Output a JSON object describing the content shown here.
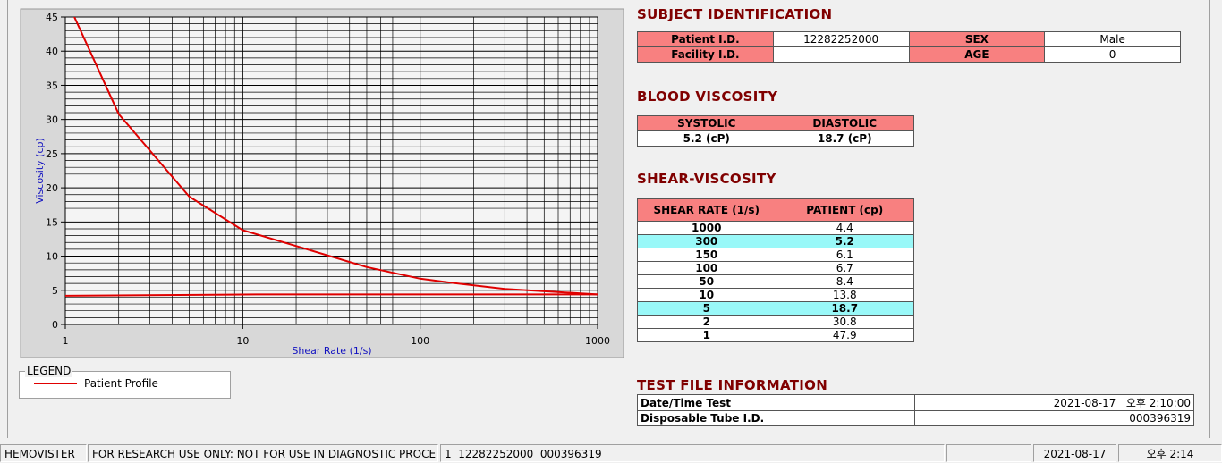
{
  "chart_data": {
    "type": "line",
    "xlabel": "Shear Rate (1/s)",
    "ylabel": "Viscosity (cp)",
    "log_x": true,
    "xlim": [
      1,
      1000
    ],
    "xticks": [
      1,
      10,
      100,
      1000
    ],
    "ylim": [
      0,
      45
    ],
    "yticks": [
      0,
      5,
      10,
      15,
      20,
      25,
      30,
      35,
      40,
      45
    ],
    "grid": true,
    "minor_grid": true,
    "legend_title": "LEGEND",
    "series": [
      {
        "name": "Patient Profile",
        "color": "#e00000",
        "x": [
          1,
          2,
          5,
          10,
          50,
          100,
          150,
          300,
          1000
        ],
        "values": [
          47.9,
          30.8,
          18.7,
          13.8,
          8.4,
          6.7,
          6.1,
          5.2,
          4.4
        ]
      },
      {
        "color": "#e00000",
        "x": [
          1,
          12,
          1000
        ],
        "values": [
          4.2,
          4.4,
          4.4
        ]
      }
    ]
  },
  "subject": {
    "title": "SUBJECT IDENTIFICATION",
    "fields": [
      {
        "label": "Patient I.D.",
        "value": "12282252000"
      },
      {
        "label": "SEX",
        "value": "Male"
      },
      {
        "label": "Facility I.D."
      },
      {
        "label": "AGE",
        "value": "0"
      }
    ]
  },
  "blood": {
    "title": "BLOOD VISCOSITY",
    "headers": [
      "SYSTOLIC",
      "DIASTOLIC"
    ],
    "values": [
      "5.2 (cP)",
      "18.7 (cP)"
    ]
  },
  "shear": {
    "title": "SHEAR-VISCOSITY",
    "headers": [
      "SHEAR RATE (1/s)",
      "PATIENT (cp)"
    ],
    "rows": [
      {
        "rate": 1000,
        "patient": 4.4
      },
      {
        "rate": 300,
        "patient": 5.2,
        "highlight": true
      },
      {
        "rate": 150,
        "patient": 6.1
      },
      {
        "rate": 100,
        "patient": 6.7
      },
      {
        "rate": 50,
        "patient": 8.4
      },
      {
        "rate": 10,
        "patient": 13.8
      },
      {
        "rate": 5,
        "patient": 18.7,
        "highlight": true
      },
      {
        "rate": 2,
        "patient": 30.8
      },
      {
        "rate": 1,
        "patient": 47.9
      }
    ]
  },
  "testfile": {
    "title": "TEST FILE INFORMATION",
    "rows": [
      {
        "label": "Date/Time Test",
        "value": "2021-08-17   오후 2:10:00"
      },
      {
        "label": "Disposable Tube I.D.",
        "value": "000396319"
      }
    ]
  },
  "statusbar": [
    "HEMOVISTER",
    "FOR RESEARCH USE ONLY: NOT FOR USE IN DIAGNOSTIC PROCEDURES",
    "1  12282252000  000396319",
    "2021-08-17",
    "오후 2:14"
  ]
}
